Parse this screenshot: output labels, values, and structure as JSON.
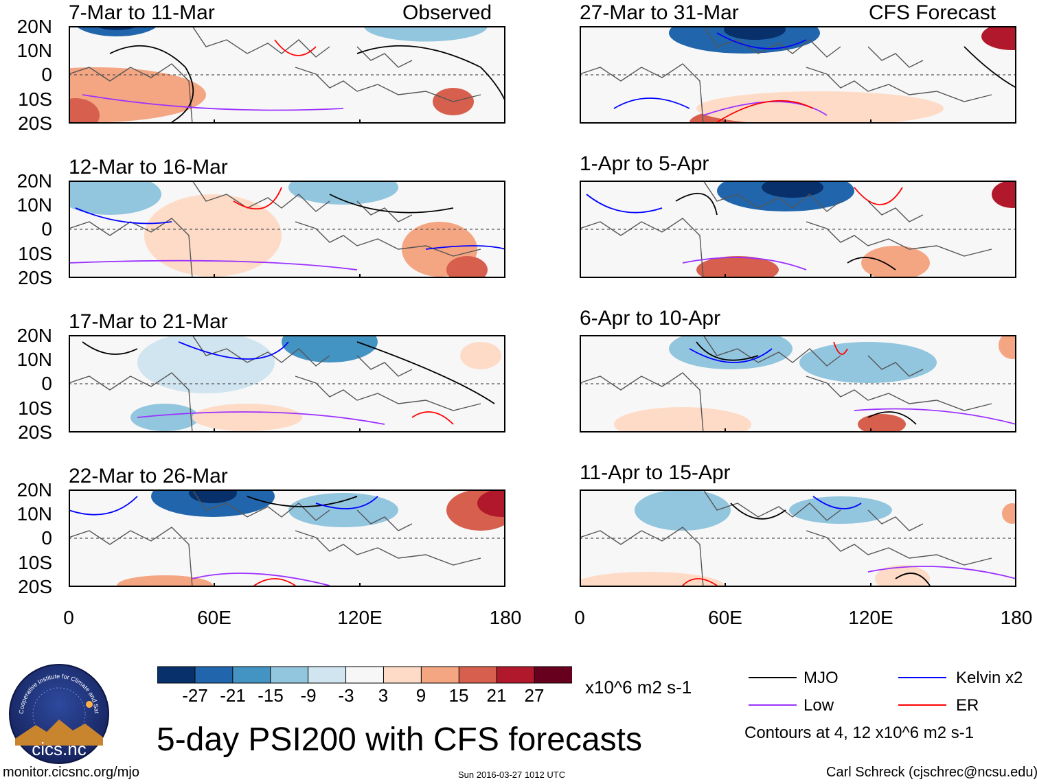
{
  "title": "5-day PSI200 with CFS forecasts",
  "labels": {
    "observed": "Observed",
    "forecast": "CFS Forecast"
  },
  "panels": [
    {
      "period": "7-Mar to 11-Mar",
      "group": "observed"
    },
    {
      "period": "12-Mar to 16-Mar",
      "group": "observed"
    },
    {
      "period": "17-Mar to 21-Mar",
      "group": "observed"
    },
    {
      "period": "22-Mar to 26-Mar",
      "group": "observed"
    },
    {
      "period": "27-Mar to 31-Mar",
      "group": "forecast"
    },
    {
      "period": "1-Apr to 5-Apr",
      "group": "forecast"
    },
    {
      "period": "6-Apr to 10-Apr",
      "group": "forecast"
    },
    {
      "period": "11-Apr to 15-Apr",
      "group": "forecast"
    }
  ],
  "axes": {
    "lat_labels": [
      "20N",
      "10N",
      "0",
      "10S",
      "20S"
    ],
    "lon_labels": [
      "0",
      "60E",
      "120E",
      "180"
    ]
  },
  "colorbar": {
    "ticks": [
      "-27",
      "-21",
      "-15",
      "-9",
      "-3",
      "3",
      "9",
      "15",
      "21",
      "27"
    ],
    "colors": [
      "#08306b",
      "#2166ac",
      "#4393c3",
      "#92c5de",
      "#d1e5f0",
      "#f7f7f7",
      "#fddbc7",
      "#f4a582",
      "#d6604d",
      "#b2182b",
      "#67001f"
    ],
    "units": "x10^6 m2 s-1"
  },
  "legend": {
    "items": [
      {
        "label": "MJO",
        "color": "#000000"
      },
      {
        "label": "Kelvin x2",
        "color": "#0000ff"
      },
      {
        "label": "Low",
        "color": "#9b30ff"
      },
      {
        "label": "ER",
        "color": "#ff0000"
      }
    ],
    "note": "Contours at 4, 12 x10^6 m2 s-1"
  },
  "logo_text": "cics.nc",
  "logo_ring_text": "Cooperative Institute for Climate and Satellites",
  "footer": {
    "url": "monitor.cicsnc.org/mjo",
    "timestamp": "Sun 2016-03-27 1012 UTC",
    "author": "Carl Schreck (cjschrec@ncsu.edu)"
  }
}
